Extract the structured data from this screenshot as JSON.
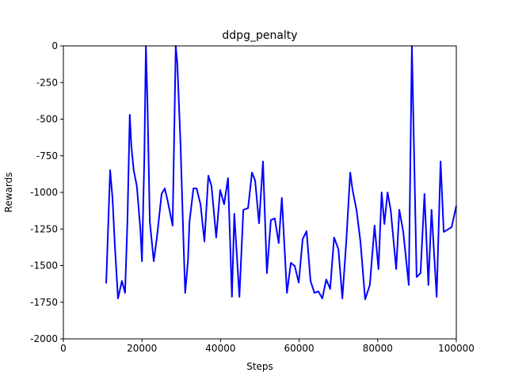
{
  "chart_data": {
    "type": "line",
    "title": "ddpg_penalty",
    "xlabel": "Steps",
    "ylabel": "Rewards",
    "xlim": [
      0,
      100000
    ],
    "ylim": [
      -2000,
      0
    ],
    "xticks": [
      0,
      20000,
      40000,
      60000,
      80000,
      100000
    ],
    "yticks": [
      -2000,
      -1750,
      -1500,
      -1250,
      -1000,
      -750,
      -500,
      -250,
      0
    ],
    "series": [
      {
        "name": "ddpg_penalty",
        "color": "#0000ff",
        "x": [
          10900,
          11300,
          11900,
          12500,
          13100,
          13900,
          14900,
          15700,
          16300,
          16900,
          17300,
          17900,
          18700,
          19600,
          20000,
          20600,
          21000,
          21400,
          22000,
          23000,
          23800,
          25000,
          25800,
          26600,
          27800,
          28600,
          29000,
          29800,
          30600,
          31000,
          31700,
          32100,
          33100,
          33900,
          34900,
          35900,
          36900,
          37700,
          38900,
          39900,
          40900,
          41900,
          42900,
          43500,
          44800,
          45800,
          47000,
          48000,
          48800,
          49800,
          50800,
          51800,
          52800,
          53800,
          54800,
          55600,
          56900,
          57900,
          58900,
          59900,
          60900,
          61900,
          62900,
          63900,
          64900,
          65900,
          66900,
          67900,
          68900,
          70000,
          71000,
          72000,
          73000,
          73600,
          74600,
          75600,
          76800,
          78000,
          79200,
          80200,
          81000,
          81700,
          82500,
          83300,
          84700,
          85500,
          86500,
          87900,
          88700,
          89900,
          90900,
          91900,
          92900,
          93700,
          95000,
          96000,
          96800,
          98800,
          100000
        ],
        "values": [
          -1622,
          -1308,
          -849,
          -1038,
          -1362,
          -1724,
          -1605,
          -1686,
          -1200,
          -470,
          -686,
          -849,
          -957,
          -1254,
          -1470,
          -768,
          0,
          -389,
          -1200,
          -1470,
          -1308,
          -1011,
          -973,
          -1065,
          -1227,
          0,
          -119,
          -659,
          -1362,
          -1686,
          -1470,
          -1200,
          -973,
          -973,
          -1081,
          -1335,
          -886,
          -957,
          -1308,
          -984,
          -1081,
          -903,
          -1713,
          -1146,
          -1713,
          -1119,
          -1108,
          -865,
          -919,
          -1211,
          -789,
          -1551,
          -1189,
          -1178,
          -1346,
          -1038,
          -1686,
          -1481,
          -1503,
          -1616,
          -1319,
          -1265,
          -1605,
          -1686,
          -1676,
          -1724,
          -1595,
          -1659,
          -1308,
          -1389,
          -1724,
          -1335,
          -865,
          -984,
          -1119,
          -1335,
          -1730,
          -1632,
          -1227,
          -1524,
          -1000,
          -1216,
          -1000,
          -1119,
          -1524,
          -1119,
          -1270,
          -1632,
          0,
          -1578,
          -1551,
          -1011,
          -1632,
          -1119,
          -1713,
          -789,
          -1270,
          -1238,
          -1092
        ]
      }
    ]
  }
}
